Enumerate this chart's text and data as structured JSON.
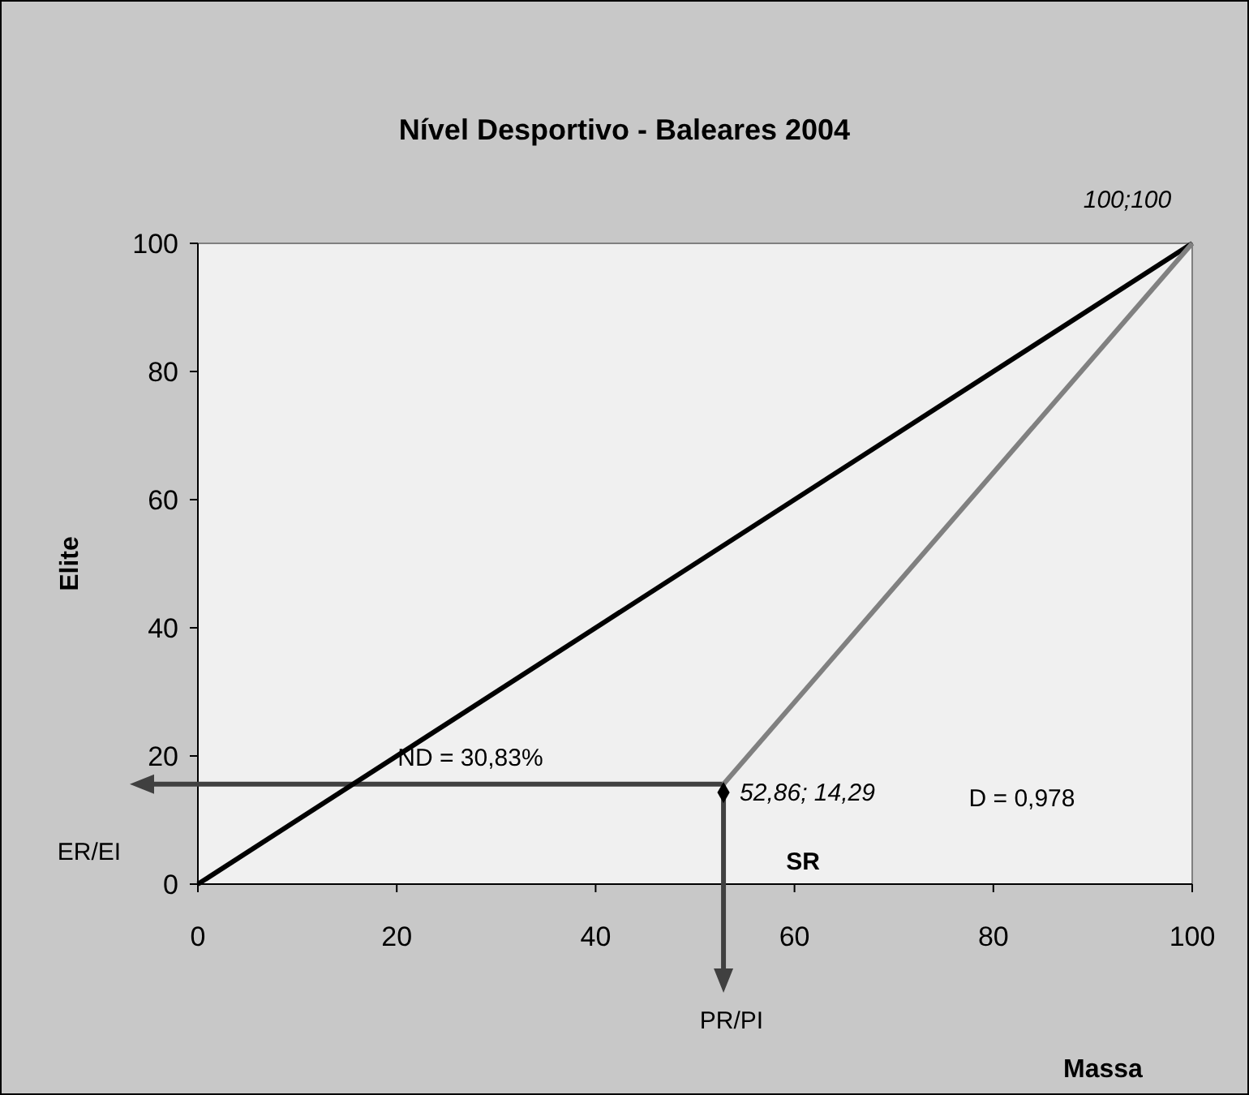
{
  "chart_data": {
    "type": "line",
    "title": "Nível Desportivo - Baleares 2004",
    "xlabel": "Massa",
    "ylabel": "Elite",
    "xlim": [
      0,
      100
    ],
    "ylim": [
      0,
      100
    ],
    "xticks": [
      0,
      20,
      40,
      60,
      80,
      100
    ],
    "yticks": [
      0,
      20,
      40,
      60,
      80,
      100
    ],
    "grid": false,
    "series": [
      {
        "color": "#000000",
        "x": [
          0,
          100
        ],
        "values": [
          0,
          100
        ]
      },
      {
        "color": "#808080",
        "x": [
          52.86,
          100
        ],
        "values": [
          15.6,
          100
        ]
      },
      {
        "type": "scatter",
        "color": "#000000",
        "marker": "diamond",
        "x": [
          52.86
        ],
        "values": [
          14.29
        ]
      }
    ],
    "annotations": [
      {
        "text": "100;100",
        "x": 100,
        "y": 100
      },
      {
        "text": "52,86; 14,29",
        "x": 52.86,
        "y": 14.29
      },
      "SR",
      "ND = 30,83%",
      "D = 0,978",
      "ER/EI",
      "PR/PI"
    ]
  }
}
